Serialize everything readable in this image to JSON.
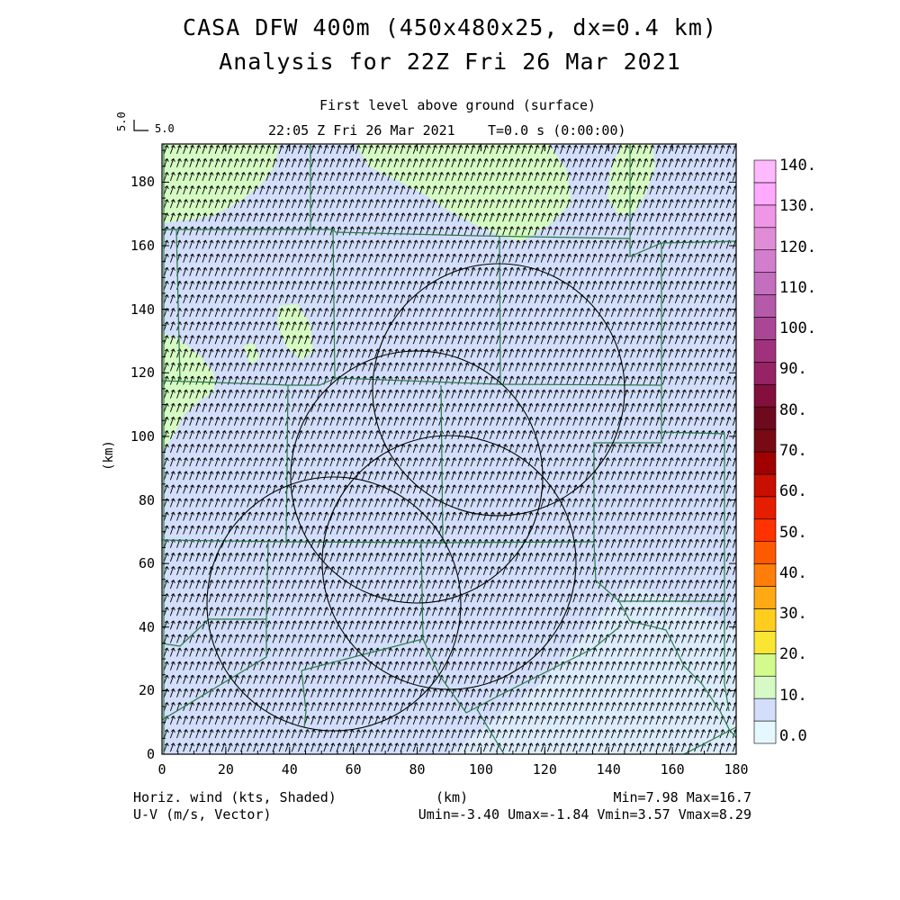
{
  "header": {
    "title_line1": "CASA DFW 400m (450x480x25, dx=0.4 km)",
    "title_line2": "Analysis for 22Z Fri 26 Mar 2021",
    "level": "First level above ground (surface)",
    "valid_time": "22:05 Z Fri 26 Mar 2021",
    "model_time": "T=0.0 s (0:00:00)",
    "vector_ref_label_v": "5.0",
    "vector_ref_label_h": "5.0"
  },
  "axes": {
    "x_label": "(km)",
    "y_label": "(km)",
    "x_ticks": [
      "0",
      "20",
      "40",
      "60",
      "80",
      "100",
      "120",
      "140",
      "160",
      "180"
    ],
    "y_ticks": [
      "0",
      "20",
      "40",
      "60",
      "80",
      "100",
      "120",
      "140",
      "160",
      "180"
    ],
    "x_range": [
      0,
      180
    ],
    "y_range": [
      0,
      192
    ]
  },
  "colorbar": {
    "labels": [
      "0.0",
      "10.",
      "20.",
      "30.",
      "40.",
      "50.",
      "60.",
      "70.",
      "80.",
      "90.",
      "100.",
      "110.",
      "120.",
      "130.",
      "140."
    ],
    "colors": [
      "#e6f8ff",
      "#d2defa",
      "#d5fac3",
      "#d2fa8c",
      "#fae632",
      "#ffcd1e",
      "#ffaa14",
      "#ff7d0a",
      "#ff5a00",
      "#ff3200",
      "#e61e00",
      "#c80f00",
      "#a00000",
      "#780a14",
      "#6e0a1e",
      "#820f3c",
      "#962364",
      "#a0327d",
      "#aa4696",
      "#b45aa8",
      "#c36ebe",
      "#d27dcd",
      "#e18cd7",
      "#f096e6",
      "#ffaaff",
      "#ffbaff"
    ]
  },
  "footer": {
    "left1": "Horiz. wind (kts, Shaded)",
    "left2": "U-V (m/s, Vector)",
    "center": "(km)",
    "right1": "Min=7.98 Max=16.7",
    "right2": "Umin=-3.40 Umax=-1.84 Vmin=3.57 Vmax=8.29"
  },
  "chart_data": {
    "type": "heatmap",
    "field": "Horizontal wind speed (kts) with U-V wind vectors",
    "min": 7.98,
    "max": 16.7,
    "umin": -3.4,
    "umax": -1.84,
    "vmin": 3.57,
    "vmax": 8.29,
    "range_rings_km": 4,
    "shade_levels": {
      "light_blue": "0-10 kts (south-east corner)",
      "blue_grey": "10-15 kts (most of domain)",
      "light_green": "15-20 kts (north edge, west edge)"
    }
  }
}
